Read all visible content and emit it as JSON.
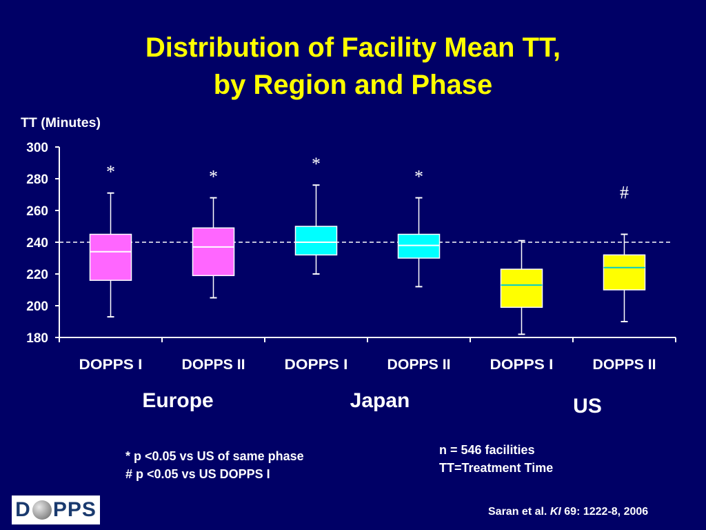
{
  "title": {
    "line1": "Distribution of Facility Mean TT,",
    "line2": "by Region and Phase"
  },
  "chart_data": {
    "type": "box",
    "ylabel": "TT (Minutes)",
    "ylim": [
      180,
      300
    ],
    "yticks": [
      180,
      200,
      220,
      240,
      260,
      280,
      300
    ],
    "reference_line": 240,
    "categories": [
      "DOPPS I",
      "DOPPS II",
      "DOPPS I",
      "DOPPS II",
      "DOPPS I",
      "DOPPS II"
    ],
    "groups": [
      {
        "label": "Europe",
        "color": "#ff66ff"
      },
      {
        "label": "Japan",
        "color": "#00ffff"
      },
      {
        "label": "US",
        "color": "#ffff00"
      }
    ],
    "boxes": [
      {
        "category": "DOPPS I",
        "group": "Europe",
        "min": 193,
        "q1": 216,
        "median": 234,
        "q3": 245,
        "max": 271,
        "marker": "*"
      },
      {
        "category": "DOPPS II",
        "group": "Europe",
        "min": 205,
        "q1": 219,
        "median": 237,
        "q3": 249,
        "max": 268,
        "marker": "*"
      },
      {
        "category": "DOPPS I",
        "group": "Japan",
        "min": 220,
        "q1": 232,
        "median": 240,
        "q3": 250,
        "max": 276,
        "marker": "*"
      },
      {
        "category": "DOPPS II",
        "group": "Japan",
        "min": 212,
        "q1": 230,
        "median": 238,
        "q3": 245,
        "max": 268,
        "marker": "*"
      },
      {
        "category": "DOPPS I",
        "group": "US",
        "min": 182,
        "q1": 199,
        "median": 213,
        "q3": 223,
        "max": 241,
        "marker": ""
      },
      {
        "category": "DOPPS II",
        "group": "US",
        "min": 190,
        "q1": 210,
        "median": 224,
        "q3": 232,
        "max": 245,
        "marker": "#"
      }
    ],
    "median_line_colors": {
      "Europe": "#ffffff",
      "Japan": "#ffffff",
      "US": "#00cccc"
    },
    "grid": false
  },
  "footnotes": {
    "left_line1": "* p <0.05 vs US of same phase",
    "left_line2": "# p <0.05 vs US DOPPS I",
    "right_line1": "n = 546 facilities",
    "right_line2": "TT=Treatment Time"
  },
  "citation": {
    "authors": "Saran et al.",
    "journal": "KI",
    "ref": "69: 1222-8, 2006"
  },
  "logo": {
    "left": "D",
    "right": "PPS"
  }
}
